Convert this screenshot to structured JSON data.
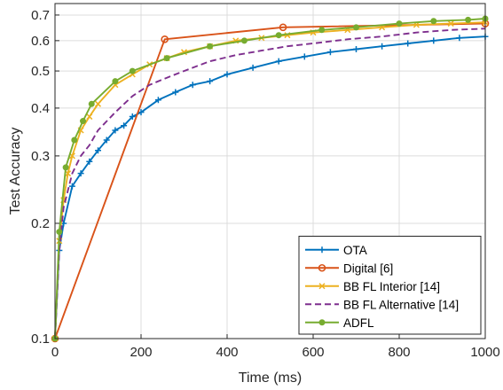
{
  "chart_data": {
    "type": "line",
    "xlabel": "Time (ms)",
    "ylabel": "Test Accuracy",
    "xlim": [
      0,
      1000
    ],
    "ylim": [
      0.1,
      0.75
    ],
    "yscale": "log",
    "grid": true,
    "legend_position": "bottom-right",
    "x_ticks": [
      0,
      200,
      400,
      600,
      800,
      1000
    ],
    "x_tick_labels": [
      "0",
      "200",
      "400",
      "600",
      "800",
      "1000"
    ],
    "y_ticks": [
      0.1,
      0.2,
      0.3,
      0.4,
      0.5,
      0.6,
      0.7
    ],
    "y_tick_labels": [
      "0.1",
      "0.2",
      "0.3",
      "0.4",
      "0.5",
      "0.6",
      "0.7"
    ],
    "series": [
      {
        "name": "OTA",
        "color": "#0072BD",
        "dash": "solid",
        "marker": "plus",
        "x": [
          0,
          10,
          20,
          40,
          60,
          80,
          100,
          120,
          140,
          160,
          180,
          200,
          240,
          280,
          320,
          360,
          400,
          460,
          520,
          580,
          640,
          700,
          760,
          820,
          880,
          940,
          1000
        ],
        "y": [
          0.1,
          0.17,
          0.2,
          0.25,
          0.27,
          0.29,
          0.31,
          0.33,
          0.35,
          0.36,
          0.38,
          0.39,
          0.42,
          0.44,
          0.46,
          0.47,
          0.49,
          0.51,
          0.53,
          0.545,
          0.56,
          0.57,
          0.58,
          0.59,
          0.6,
          0.61,
          0.615
        ]
      },
      {
        "name": "Digital [6]",
        "color": "#D95319",
        "dash": "solid",
        "marker": "circle",
        "x": [
          0,
          255,
          530,
          1000
        ],
        "y": [
          0.1,
          0.605,
          0.65,
          0.665
        ]
      },
      {
        "name": "BB FL Interior [14]",
        "color": "#EDB120",
        "dash": "solid",
        "marker": "x",
        "x": [
          0,
          10,
          20,
          30,
          40,
          60,
          80,
          100,
          140,
          180,
          220,
          260,
          300,
          360,
          420,
          480,
          540,
          600,
          680,
          760,
          840,
          920,
          1000
        ],
        "y": [
          0.1,
          0.18,
          0.23,
          0.27,
          0.3,
          0.35,
          0.38,
          0.41,
          0.46,
          0.49,
          0.52,
          0.54,
          0.56,
          0.58,
          0.6,
          0.61,
          0.62,
          0.63,
          0.64,
          0.65,
          0.66,
          0.665,
          0.67
        ]
      },
      {
        "name": "BB FL Alternative [14]",
        "color": "#7E2F8E",
        "dash": "dashed",
        "marker": "none",
        "x": [
          0,
          10,
          20,
          40,
          60,
          80,
          100,
          140,
          180,
          220,
          260,
          300,
          360,
          420,
          480,
          540,
          600,
          680,
          760,
          840,
          920,
          1000
        ],
        "y": [
          0.1,
          0.17,
          0.22,
          0.27,
          0.3,
          0.32,
          0.35,
          0.39,
          0.43,
          0.46,
          0.48,
          0.5,
          0.53,
          0.55,
          0.565,
          0.58,
          0.59,
          0.605,
          0.615,
          0.63,
          0.64,
          0.645
        ]
      },
      {
        "name": "ADFL",
        "color": "#77AC30",
        "dash": "solid",
        "marker": "dot",
        "x": [
          0,
          10,
          25,
          45,
          65,
          85,
          140,
          180,
          260,
          360,
          440,
          520,
          620,
          700,
          800,
          880,
          960,
          1000
        ],
        "y": [
          0.1,
          0.19,
          0.28,
          0.33,
          0.37,
          0.41,
          0.47,
          0.5,
          0.54,
          0.58,
          0.6,
          0.62,
          0.64,
          0.65,
          0.665,
          0.675,
          0.68,
          0.685
        ]
      }
    ]
  }
}
